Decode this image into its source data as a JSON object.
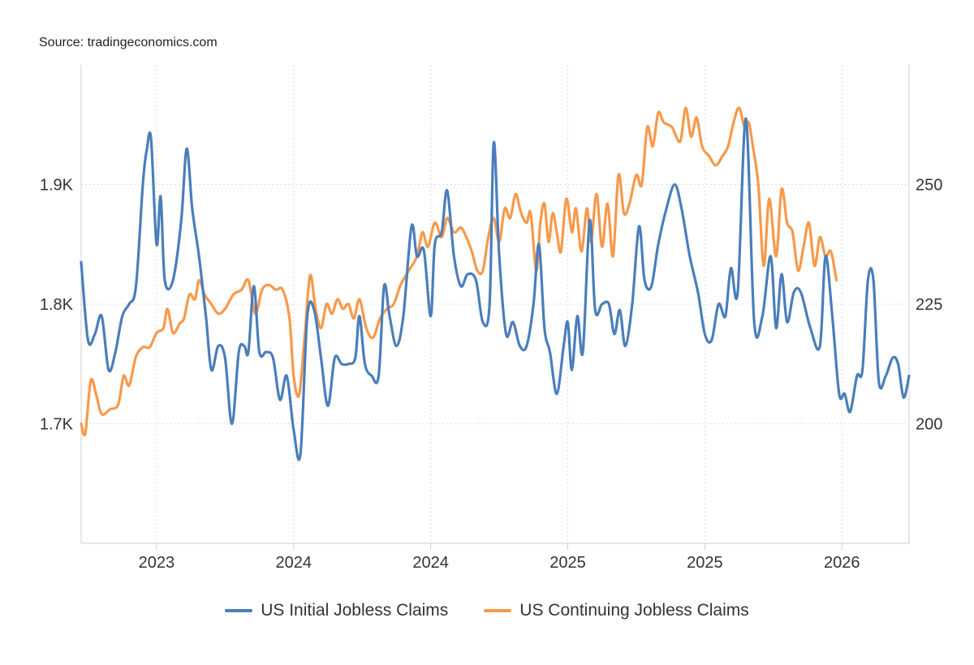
{
  "source": "Source: tradingeconomics.com",
  "colors": {
    "initial": "#4A7EBB",
    "continuing": "#F7994A",
    "grid": "#dcdcdc",
    "axis": "#cfcfcf"
  },
  "chart_data": {
    "type": "line",
    "title": "",
    "grid": "dotted",
    "legend_position": "bottom-center",
    "x_tick_labels": [
      "2023",
      "2024",
      "2024",
      "2025",
      "2025",
      "2026"
    ],
    "left_axis": {
      "ticks": [
        1.7,
        1.8,
        1.9
      ],
      "tick_labels": [
        "1.7K",
        "1.8K",
        "1.9K"
      ],
      "range": [
        1.6,
        2.0
      ],
      "unit": "K"
    },
    "right_axis": {
      "ticks": [
        200,
        225,
        250
      ],
      "tick_labels": [
        "200",
        "225",
        "250"
      ],
      "range": [
        175,
        275
      ]
    },
    "series": [
      {
        "name": "US Initial Jobless Claims",
        "axis": "left",
        "color": "#4A7EBB",
        "points": [
          [
            2022.45,
            1.835
          ],
          [
            2022.5,
            1.77
          ],
          [
            2022.55,
            1.775
          ],
          [
            2022.6,
            1.79
          ],
          [
            2022.65,
            1.745
          ],
          [
            2022.7,
            1.76
          ],
          [
            2022.75,
            1.79
          ],
          [
            2022.8,
            1.8
          ],
          [
            2022.85,
            1.815
          ],
          [
            2022.9,
            1.9
          ],
          [
            2022.93,
            1.93
          ],
          [
            2022.96,
            1.938
          ],
          [
            2023.0,
            1.85
          ],
          [
            2023.03,
            1.89
          ],
          [
            2023.06,
            1.82
          ],
          [
            2023.12,
            1.82
          ],
          [
            2023.18,
            1.87
          ],
          [
            2023.22,
            1.93
          ],
          [
            2023.26,
            1.88
          ],
          [
            2023.31,
            1.84
          ],
          [
            2023.36,
            1.79
          ],
          [
            2023.4,
            1.745
          ],
          [
            2023.45,
            1.765
          ],
          [
            2023.5,
            1.755
          ],
          [
            2023.55,
            1.7
          ],
          [
            2023.6,
            1.76
          ],
          [
            2023.64,
            1.765
          ],
          [
            2023.67,
            1.76
          ],
          [
            2023.71,
            1.815
          ],
          [
            2023.75,
            1.76
          ],
          [
            2023.8,
            1.76
          ],
          [
            2023.85,
            1.755
          ],
          [
            2023.9,
            1.72
          ],
          [
            2023.95,
            1.74
          ],
          [
            2024.0,
            1.695
          ],
          [
            2024.05,
            1.675
          ],
          [
            2024.1,
            1.79
          ],
          [
            2024.15,
            1.795
          ],
          [
            2024.2,
            1.755
          ],
          [
            2024.25,
            1.715
          ],
          [
            2024.3,
            1.755
          ],
          [
            2024.35,
            1.75
          ],
          [
            2024.4,
            1.75
          ],
          [
            2024.45,
            1.755
          ],
          [
            2024.48,
            1.79
          ],
          [
            2024.52,
            1.75
          ],
          [
            2024.57,
            1.74
          ],
          [
            2024.62,
            1.74
          ],
          [
            2024.66,
            1.815
          ],
          [
            2024.7,
            1.79
          ],
          [
            2024.75,
            1.765
          ],
          [
            2024.8,
            1.79
          ],
          [
            2024.86,
            1.865
          ],
          [
            2024.9,
            1.84
          ],
          [
            2024.95,
            1.845
          ],
          [
            2025.0,
            1.79
          ],
          [
            2025.03,
            1.85
          ],
          [
            2025.08,
            1.86
          ],
          [
            2025.12,
            1.895
          ],
          [
            2025.17,
            1.84
          ],
          [
            2025.22,
            1.815
          ],
          [
            2025.27,
            1.825
          ],
          [
            2025.33,
            1.82
          ],
          [
            2025.38,
            1.785
          ],
          [
            2025.43,
            1.8
          ],
          [
            2025.46,
            1.935
          ],
          [
            2025.5,
            1.84
          ],
          [
            2025.55,
            1.775
          ],
          [
            2025.6,
            1.785
          ],
          [
            2025.65,
            1.765
          ],
          [
            2025.7,
            1.765
          ],
          [
            2025.75,
            1.8
          ],
          [
            2025.79,
            1.85
          ],
          [
            2025.83,
            1.78
          ],
          [
            2025.87,
            1.76
          ],
          [
            2025.92,
            1.725
          ],
          [
            2025.97,
            1.765
          ],
          [
            2026.0,
            1.785
          ],
          [
            2026.03,
            1.745
          ],
          [
            2026.07,
            1.79
          ],
          [
            2026.11,
            1.76
          ],
          [
            2026.16,
            1.87
          ],
          [
            2026.2,
            1.795
          ],
          [
            2026.25,
            1.8
          ],
          [
            2026.3,
            1.8
          ],
          [
            2026.34,
            1.775
          ],
          [
            2026.38,
            1.795
          ],
          [
            2026.42,
            1.765
          ],
          [
            2026.47,
            1.8
          ],
          [
            2026.52,
            1.865
          ],
          [
            2026.56,
            1.82
          ],
          [
            2026.61,
            1.815
          ],
          [
            2026.66,
            1.85
          ],
          [
            2026.72,
            1.88
          ],
          [
            2026.78,
            1.9
          ],
          [
            2026.83,
            1.88
          ],
          [
            2026.89,
            1.84
          ],
          [
            2026.95,
            1.81
          ],
          [
            2027.0,
            1.775
          ],
          [
            2027.05,
            1.77
          ],
          [
            2027.1,
            1.8
          ],
          [
            2027.15,
            1.79
          ],
          [
            2027.19,
            1.83
          ],
          [
            2027.24,
            1.81
          ],
          [
            2027.3,
            1.955
          ],
          [
            2027.36,
            1.785
          ],
          [
            2027.42,
            1.79
          ],
          [
            2027.48,
            1.84
          ],
          [
            2027.52,
            1.78
          ],
          [
            2027.56,
            1.825
          ],
          [
            2027.6,
            1.785
          ],
          [
            2027.65,
            1.81
          ],
          [
            2027.7,
            1.81
          ],
          [
            2027.77,
            1.78
          ],
          [
            2027.84,
            1.765
          ],
          [
            2027.88,
            1.84
          ],
          [
            2027.93,
            1.79
          ],
          [
            2027.98,
            1.725
          ],
          [
            2028.02,
            1.725
          ],
          [
            2028.06,
            1.71
          ],
          [
            2028.11,
            1.74
          ],
          [
            2028.15,
            1.745
          ],
          [
            2028.19,
            1.82
          ],
          [
            2028.23,
            1.82
          ],
          [
            2028.27,
            1.735
          ],
          [
            2028.32,
            1.74
          ],
          [
            2028.37,
            1.755
          ],
          [
            2028.41,
            1.75
          ],
          [
            2028.45,
            1.722
          ],
          [
            2028.49,
            1.74
          ]
        ]
      },
      {
        "name": "US Continuing Jobless Claims",
        "axis": "right",
        "color": "#F7994A",
        "points": [
          [
            2022.45,
            200
          ],
          [
            2022.48,
            198
          ],
          [
            2022.52,
            209
          ],
          [
            2022.56,
            206
          ],
          [
            2022.6,
            202
          ],
          [
            2022.66,
            203
          ],
          [
            2022.72,
            204
          ],
          [
            2022.76,
            210
          ],
          [
            2022.8,
            208
          ],
          [
            2022.85,
            214
          ],
          [
            2022.9,
            216
          ],
          [
            2022.95,
            216
          ],
          [
            2023.0,
            219
          ],
          [
            2023.05,
            220
          ],
          [
            2023.08,
            224
          ],
          [
            2023.12,
            219
          ],
          [
            2023.17,
            221
          ],
          [
            2023.2,
            222
          ],
          [
            2023.24,
            227
          ],
          [
            2023.28,
            226
          ],
          [
            2023.31,
            230
          ],
          [
            2023.35,
            227
          ],
          [
            2023.4,
            225
          ],
          [
            2023.45,
            223
          ],
          [
            2023.5,
            224
          ],
          [
            2023.56,
            227
          ],
          [
            2023.62,
            228
          ],
          [
            2023.67,
            230
          ],
          [
            2023.72,
            223
          ],
          [
            2023.77,
            228
          ],
          [
            2023.82,
            229
          ],
          [
            2023.87,
            228
          ],
          [
            2023.92,
            228
          ],
          [
            2023.97,
            222
          ],
          [
            2024.0,
            210
          ],
          [
            2024.04,
            206
          ],
          [
            2024.08,
            218
          ],
          [
            2024.12,
            231
          ],
          [
            2024.16,
            224
          ],
          [
            2024.2,
            220
          ],
          [
            2024.24,
            225
          ],
          [
            2024.28,
            223
          ],
          [
            2024.32,
            226
          ],
          [
            2024.36,
            224
          ],
          [
            2024.4,
            225
          ],
          [
            2024.44,
            222
          ],
          [
            2024.48,
            226
          ],
          [
            2024.53,
            220
          ],
          [
            2024.58,
            218
          ],
          [
            2024.63,
            222
          ],
          [
            2024.68,
            224
          ],
          [
            2024.73,
            225
          ],
          [
            2024.78,
            229
          ],
          [
            2024.84,
            232
          ],
          [
            2024.9,
            235
          ],
          [
            2024.94,
            240
          ],
          [
            2024.98,
            237
          ],
          [
            2025.03,
            242
          ],
          [
            2025.08,
            239
          ],
          [
            2025.12,
            243
          ],
          [
            2025.17,
            240
          ],
          [
            2025.22,
            241
          ],
          [
            2025.26,
            239
          ],
          [
            2025.3,
            236
          ],
          [
            2025.34,
            232
          ],
          [
            2025.38,
            232
          ],
          [
            2025.42,
            239
          ],
          [
            2025.46,
            243
          ],
          [
            2025.5,
            238
          ],
          [
            2025.54,
            245
          ],
          [
            2025.58,
            243
          ],
          [
            2025.62,
            248
          ],
          [
            2025.66,
            244
          ],
          [
            2025.7,
            242
          ],
          [
            2025.73,
            244
          ],
          [
            2025.77,
            232
          ],
          [
            2025.8,
            242
          ],
          [
            2025.83,
            246
          ],
          [
            2025.86,
            238
          ],
          [
            2025.89,
            244
          ],
          [
            2025.92,
            240
          ],
          [
            2025.95,
            236
          ],
          [
            2025.99,
            247
          ],
          [
            2026.03,
            240
          ],
          [
            2026.06,
            245
          ],
          [
            2026.1,
            236
          ],
          [
            2026.14,
            245
          ],
          [
            2026.17,
            238
          ],
          [
            2026.21,
            248
          ],
          [
            2026.25,
            237
          ],
          [
            2026.29,
            246
          ],
          [
            2026.33,
            235
          ],
          [
            2026.37,
            252
          ],
          [
            2026.41,
            244
          ],
          [
            2026.45,
            246
          ],
          [
            2026.5,
            252
          ],
          [
            2026.54,
            250
          ],
          [
            2026.58,
            262
          ],
          [
            2026.62,
            258
          ],
          [
            2026.66,
            265
          ],
          [
            2026.7,
            263
          ],
          [
            2026.76,
            262
          ],
          [
            2026.82,
            259
          ],
          [
            2026.86,
            266
          ],
          [
            2026.9,
            260
          ],
          [
            2026.94,
            264
          ],
          [
            2026.98,
            258
          ],
          [
            2027.03,
            256
          ],
          [
            2027.08,
            254
          ],
          [
            2027.13,
            256
          ],
          [
            2027.17,
            258
          ],
          [
            2027.21,
            263
          ],
          [
            2027.25,
            266
          ],
          [
            2027.29,
            262
          ],
          [
            2027.32,
            263
          ],
          [
            2027.35,
            258
          ],
          [
            2027.39,
            250
          ],
          [
            2027.43,
            233
          ],
          [
            2027.47,
            247
          ],
          [
            2027.52,
            235
          ],
          [
            2027.56,
            249
          ],
          [
            2027.6,
            242
          ],
          [
            2027.64,
            240
          ],
          [
            2027.68,
            232
          ],
          [
            2027.72,
            237
          ],
          [
            2027.76,
            242
          ],
          [
            2027.8,
            233
          ],
          [
            2027.84,
            239
          ],
          [
            2027.88,
            235
          ],
          [
            2027.92,
            236
          ],
          [
            2027.96,
            230
          ]
        ]
      }
    ]
  }
}
